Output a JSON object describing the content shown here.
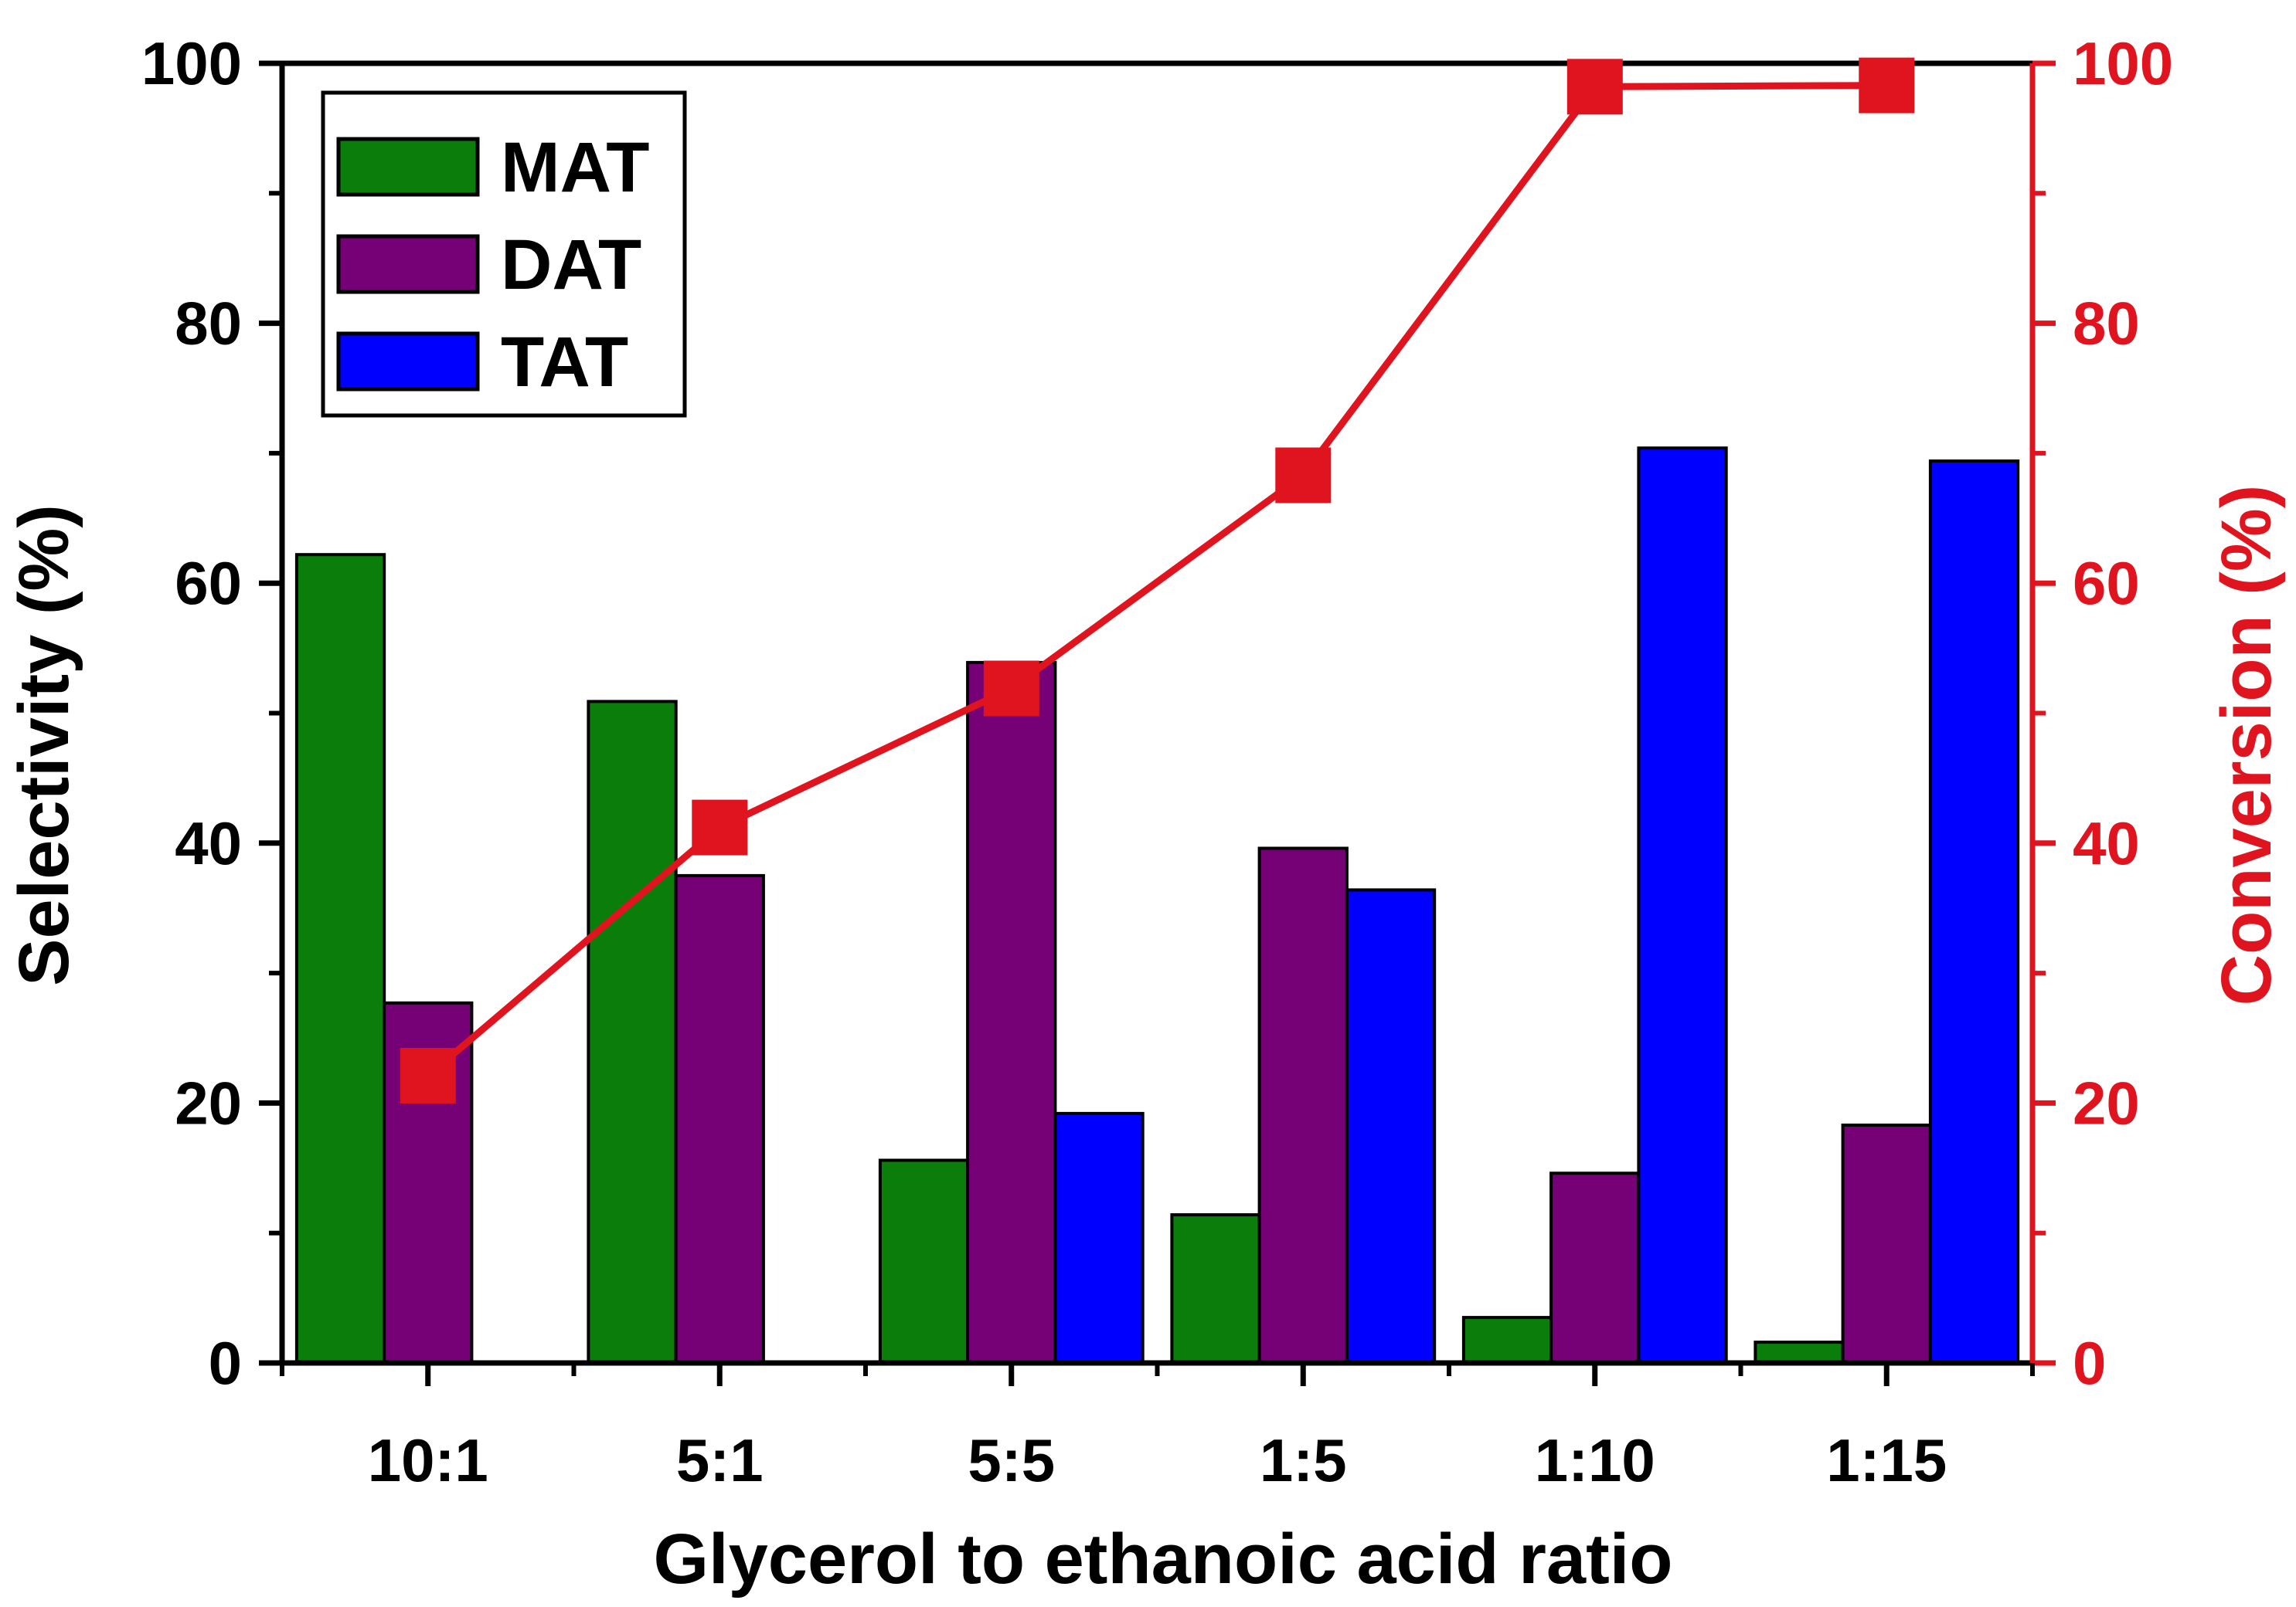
{
  "chart_data": {
    "type": "bar",
    "categories": [
      "10:1",
      "5:1",
      "5:5",
      "1:5",
      "1:10",
      "1:15"
    ],
    "series": [
      {
        "name": "MAT",
        "axis": "left",
        "kind": "bar",
        "color": "#0A7D0A",
        "values": [
          62.2,
          50.9,
          15.6,
          11.4,
          3.5,
          1.6
        ]
      },
      {
        "name": "DAT",
        "axis": "left",
        "kind": "bar",
        "color": "#760076",
        "values": [
          27.7,
          37.5,
          53.9,
          39.6,
          14.6,
          18.3
        ]
      },
      {
        "name": "TAT",
        "axis": "left",
        "kind": "bar",
        "color": "#0000FF",
        "values": [
          0,
          0,
          19.2,
          36.4,
          70.4,
          69.4
        ]
      },
      {
        "name": "Conversion",
        "axis": "right",
        "kind": "line",
        "marker": "square",
        "color": "#E0141E",
        "values": [
          22.1,
          41.2,
          51.9,
          68.3,
          98.2,
          98.3
        ]
      }
    ],
    "xlabel": "Glycerol to ethanoic acid ratio",
    "ylabel": "Selectivity (%)",
    "y2label": "Conversion (%)",
    "ylim": [
      0,
      100
    ],
    "y2lim": [
      0,
      100
    ],
    "yticks": [
      0,
      20,
      40,
      60,
      80,
      100
    ],
    "y2ticks": [
      0,
      20,
      40,
      60,
      80,
      100
    ],
    "legend": {
      "position": "top-left",
      "entries": [
        "MAT",
        "DAT",
        "TAT"
      ]
    },
    "grid": false
  }
}
